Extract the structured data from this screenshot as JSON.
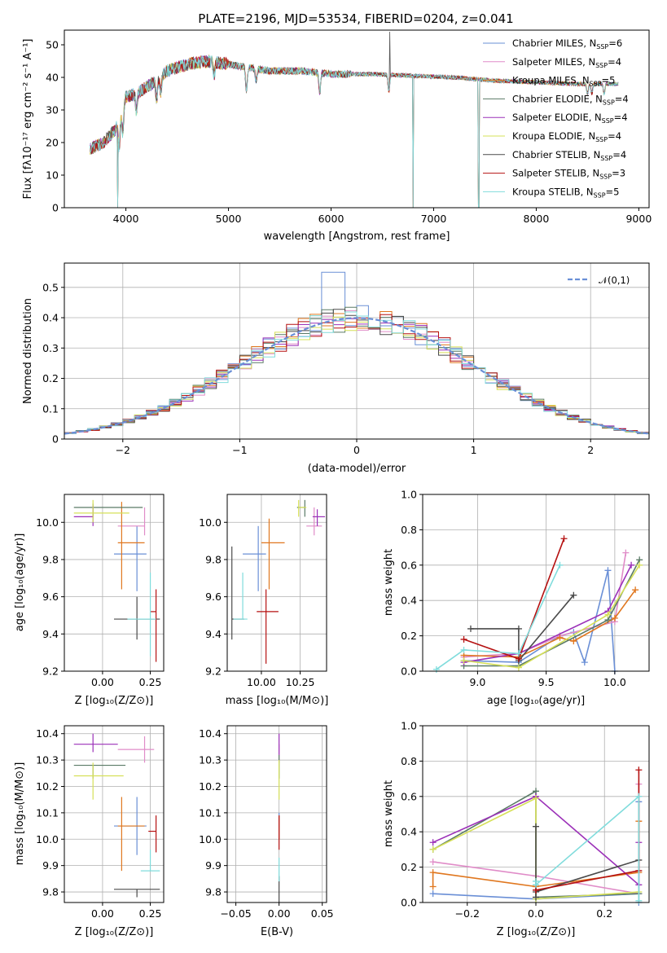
{
  "colors": [
    "#6a8fd6",
    "#e08cc8",
    "#e0771f",
    "#5a7a66",
    "#9b30b8",
    "#d6e058",
    "#4a4a4a",
    "#b51111",
    "#80dcdc"
  ],
  "legend_labels": [
    "Chabrier MILES, N",
    "Salpeter MILES, N",
    "Kroupa MILES, N",
    "Chabrier ELODIE, N",
    "Salpeter ELODIE, N",
    "Kroupa ELODIE, N",
    "Chabrier STELIB, N",
    "Salpeter STELIB, N",
    "Kroupa STELIB, N"
  ],
  "legend_sub": "SSP",
  "legend_counts": [
    "=6",
    "=4",
    "=5",
    "=4",
    "=4",
    "=4",
    "=4",
    "=3",
    "=5"
  ],
  "chart_data": [
    {
      "id": "spectrum",
      "type": "line",
      "title": "PLATE=2196, MJD=53534, FIBERID=0204, z=0.041",
      "xlabel": "wavelength [Angstrom, rest frame]",
      "ylabel": "Flux [fλ10⁻¹⁷ erg cm⁻² s⁻¹ A⁻¹]",
      "xlim": [
        3400,
        9100
      ],
      "ylim": [
        0,
        54.5
      ],
      "xticks": [
        4000,
        5000,
        6000,
        7000,
        8000,
        9000
      ],
      "yticks": [
        0,
        10,
        20,
        30,
        40,
        50
      ],
      "continuum": [
        [
          3650,
          18
        ],
        [
          3780,
          20
        ],
        [
          3900,
          24
        ],
        [
          4000,
          34
        ],
        [
          4100,
          35
        ],
        [
          4250,
          38
        ],
        [
          4400,
          42
        ],
        [
          4600,
          44
        ],
        [
          4800,
          45
        ],
        [
          5000,
          44
        ],
        [
          5200,
          43
        ],
        [
          5400,
          42
        ],
        [
          5700,
          42
        ],
        [
          6000,
          41
        ],
        [
          6400,
          41
        ],
        [
          6800,
          40.5
        ],
        [
          7200,
          40
        ],
        [
          7600,
          39
        ],
        [
          8000,
          38.5
        ],
        [
          8400,
          38
        ],
        [
          8800,
          38
        ]
      ],
      "dips": [
        [
          3934,
          9
        ],
        [
          3969,
          8
        ],
        [
          4102,
          5
        ],
        [
          4300,
          6
        ],
        [
          4340,
          5
        ],
        [
          4861,
          4
        ],
        [
          5175,
          7
        ],
        [
          5270,
          4
        ],
        [
          5890,
          6
        ],
        [
          6563,
          5
        ],
        [
          8500,
          3
        ],
        [
          8542,
          3
        ],
        [
          8662,
          3
        ]
      ],
      "drops": [
        [
          3920,
          0,
          5
        ],
        [
          6800,
          0,
          5
        ],
        [
          7440,
          0,
          7
        ]
      ],
      "spike": [
        6570,
        54
      ]
    },
    {
      "id": "residuals",
      "type": "histogram",
      "xlabel": "(data-model)/error",
      "ylabel": "Normed distribution",
      "xlim": [
        -2.5,
        2.5
      ],
      "ylim": [
        0,
        0.58
      ],
      "xticks": [
        -2,
        -1,
        0,
        1,
        2
      ],
      "yticks": [
        0.0,
        0.1,
        0.2,
        0.3,
        0.4,
        0.5
      ],
      "bin_width": 0.1,
      "legend": "𝒩(0,1)",
      "peaks": [
        0.55,
        0.48,
        0.47,
        0.42,
        0.46,
        0.45,
        0.44,
        0.45,
        0.44
      ]
    },
    {
      "id": "age_vs_Z",
      "type": "errorbar",
      "xlabel": "Z [log₁₀(Z/Z⊙)]",
      "ylabel": "age  [log₁₀(age/yr)]",
      "xlim": [
        -0.2,
        0.32
      ],
      "ylim": [
        9.2,
        10.15
      ],
      "xticks": [
        0.0,
        0.25
      ],
      "xticklabels": [
        "0.00",
        "0.25"
      ],
      "yticks": [
        9.2,
        9.4,
        9.6,
        9.8,
        10.0
      ],
      "yticklabels": [
        "9.2",
        "9.4",
        "9.6",
        "9.8",
        "10.0"
      ],
      "points": [
        {
          "x": 0.18,
          "y": 9.83,
          "xerr": [
            0.12,
            0.05
          ],
          "yerr": [
            0.2,
            0.15
          ]
        },
        {
          "x": 0.22,
          "y": 9.98,
          "xerr": [
            0.14,
            0.0
          ],
          "yerr": [
            0.05,
            0.1
          ]
        },
        {
          "x": 0.1,
          "y": 9.89,
          "xerr": [
            0.02,
            0.12
          ],
          "yerr": [
            0.25,
            0.22
          ]
        },
        {
          "x": -0.05,
          "y": 10.08,
          "xerr": [
            0.1,
            0.26
          ],
          "yerr": [
            0.05,
            0.02
          ]
        },
        {
          "x": -0.05,
          "y": 10.03,
          "xerr": [
            0.1,
            0.0
          ],
          "yerr": [
            0.05,
            0.06
          ]
        },
        {
          "x": -0.05,
          "y": 10.05,
          "xerr": [
            0.1,
            0.19
          ],
          "yerr": [
            0.05,
            0.07
          ]
        },
        {
          "x": 0.18,
          "y": 9.48,
          "xerr": [
            0.12,
            0.12
          ],
          "yerr": [
            0.11,
            0.12
          ]
        },
        {
          "x": 0.28,
          "y": 9.52,
          "xerr": [
            0.03,
            0.0
          ],
          "yerr": [
            0.27,
            0.12
          ]
        },
        {
          "x": 0.25,
          "y": 9.48,
          "xerr": [
            0.12,
            0.03
          ],
          "yerr": [
            0.2,
            0.25
          ]
        }
      ]
    },
    {
      "id": "age_vs_mass",
      "type": "errorbar",
      "xlabel": "mass [log₁₀(M/M⊙)]",
      "ylabel": "",
      "xlim": [
        9.78,
        10.42
      ],
      "ylim": [
        9.2,
        10.15
      ],
      "xticks": [
        10.0,
        10.25
      ],
      "xticklabels": [
        "10.00",
        "10.25"
      ],
      "yticks": [
        9.2,
        9.4,
        9.6,
        9.8,
        10.0
      ],
      "yticklabels": [
        "9.2",
        "9.4",
        "9.6",
        "9.8",
        "10.0"
      ],
      "points": [
        {
          "x": 9.98,
          "y": 9.83,
          "xerr": [
            0.1,
            0.05
          ],
          "yerr": [
            0.2,
            0.15
          ]
        },
        {
          "x": 10.34,
          "y": 9.98,
          "xerr": [
            0.05,
            0.05
          ],
          "yerr": [
            0.05,
            0.1
          ]
        },
        {
          "x": 10.05,
          "y": 9.89,
          "xerr": [
            0.05,
            0.1
          ],
          "yerr": [
            0.25,
            0.13
          ]
        },
        {
          "x": 10.28,
          "y": 10.08,
          "xerr": [
            0.05,
            0.0
          ],
          "yerr": [
            0.05,
            0.04
          ]
        },
        {
          "x": 10.36,
          "y": 10.03,
          "xerr": [
            0.03,
            0.05
          ],
          "yerr": [
            0.05,
            0.04
          ]
        },
        {
          "x": 10.24,
          "y": 10.08,
          "xerr": [
            0.0,
            0.05
          ],
          "yerr": [
            0.05,
            0.04
          ]
        },
        {
          "x": 9.81,
          "y": 9.48,
          "xerr": [
            0.0,
            0.08
          ],
          "yerr": [
            0.11,
            0.39
          ]
        },
        {
          "x": 10.03,
          "y": 9.52,
          "xerr": [
            0.06,
            0.08
          ],
          "yerr": [
            0.28,
            0.12
          ]
        },
        {
          "x": 9.88,
          "y": 9.48,
          "xerr": [
            0.06,
            0.03
          ],
          "yerr": [
            0.0,
            0.25
          ]
        }
      ]
    },
    {
      "id": "weight_vs_age",
      "type": "line",
      "xlabel": "age  [log₁₀(age/yr)]",
      "ylabel": "mass weight",
      "xlim": [
        8.6,
        10.25
      ],
      "ylim": [
        0,
        1.0
      ],
      "xticks": [
        9.0,
        9.5,
        10.0
      ],
      "xticklabels": [
        "9.0",
        "9.5",
        "10.0"
      ],
      "yticks": [
        0.0,
        0.2,
        0.4,
        0.6,
        0.8,
        1.0
      ],
      "yticklabels": [
        "0.0",
        "0.2",
        "0.4",
        "0.6",
        "0.8",
        "1.0"
      ],
      "series": [
        {
          "x": [
            8.9,
            9.3,
            9.6,
            9.7,
            9.78,
            9.95,
            10.0
          ],
          "y": [
            0.06,
            0.05,
            0.2,
            0.22,
            0.05,
            0.57,
            0.0
          ]
        },
        {
          "x": [
            8.9,
            9.3,
            9.6,
            10.0,
            10.08
          ],
          "y": [
            0.08,
            0.1,
            0.2,
            0.28,
            0.67
          ]
        },
        {
          "x": [
            8.9,
            9.3,
            9.6,
            9.7,
            10.0,
            10.15
          ],
          "y": [
            0.09,
            0.08,
            0.19,
            0.17,
            0.3,
            0.46
          ]
        },
        {
          "x": [
            8.9,
            9.3,
            9.95,
            10.18
          ],
          "y": [
            0.03,
            0.03,
            0.29,
            0.63
          ]
        },
        {
          "x": [
            8.9,
            9.3,
            9.95,
            10.12
          ],
          "y": [
            0.05,
            0.1,
            0.34,
            0.6
          ]
        },
        {
          "x": [
            8.9,
            9.3,
            9.95,
            10.18
          ],
          "y": [
            0.06,
            0.02,
            0.32,
            0.6
          ]
        },
        {
          "x": [
            8.95,
            9.3,
            9.3,
            9.7
          ],
          "y": [
            0.24,
            0.24,
            0.06,
            0.43
          ]
        },
        {
          "x": [
            8.9,
            9.3,
            9.63
          ],
          "y": [
            0.18,
            0.07,
            0.75
          ]
        },
        {
          "x": [
            8.7,
            8.9,
            9.3,
            9.6
          ],
          "y": [
            0.01,
            0.12,
            0.1,
            0.6
          ]
        }
      ]
    },
    {
      "id": "mass_vs_Z",
      "type": "errorbar",
      "xlabel": "Z [log₁₀(Z/Z⊙)]",
      "ylabel": "mass [log₁₀(M/M⊙)]",
      "xlim": [
        -0.2,
        0.32
      ],
      "ylim": [
        9.76,
        10.43
      ],
      "xticks": [
        0.0,
        0.25
      ],
      "xticklabels": [
        "0.00",
        "0.25"
      ],
      "yticks": [
        9.8,
        9.9,
        10.0,
        10.1,
        10.2,
        10.3,
        10.4
      ],
      "yticklabels": [
        "9.8",
        "9.9",
        "10.0",
        "10.1",
        "10.2",
        "10.3",
        "10.4"
      ],
      "points": [
        {
          "x": 0.18,
          "y": 10.05,
          "xerr": [
            0.12,
            0.05
          ],
          "yerr": [
            0.11,
            0.11
          ]
        },
        {
          "x": 0.22,
          "y": 10.34,
          "xerr": [
            0.14,
            0.05
          ],
          "yerr": [
            0.05,
            0.05
          ]
        },
        {
          "x": 0.1,
          "y": 10.05,
          "xerr": [
            0.02,
            0.12
          ],
          "yerr": [
            0.17,
            0.11
          ]
        },
        {
          "x": -0.05,
          "y": 10.28,
          "xerr": [
            0.1,
            0.17
          ],
          "yerr": [
            0.05,
            0.0
          ]
        },
        {
          "x": -0.05,
          "y": 10.36,
          "xerr": [
            0.1,
            0.13
          ],
          "yerr": [
            0.03,
            0.04
          ]
        },
        {
          "x": -0.05,
          "y": 10.24,
          "xerr": [
            0.1,
            0.16
          ],
          "yerr": [
            0.09,
            0.05
          ]
        },
        {
          "x": 0.18,
          "y": 9.81,
          "xerr": [
            0.12,
            0.12
          ],
          "yerr": [
            0.03,
            0.0
          ]
        },
        {
          "x": 0.28,
          "y": 10.03,
          "xerr": [
            0.04,
            0.0
          ],
          "yerr": [
            0.08,
            0.06
          ]
        },
        {
          "x": 0.25,
          "y": 9.88,
          "xerr": [
            0.05,
            0.05
          ],
          "yerr": [
            0.0,
            0.08
          ]
        }
      ]
    },
    {
      "id": "mass_vs_ebv",
      "type": "errorbar",
      "xlabel": "E(B-V)",
      "ylabel": "",
      "xlim": [
        -0.06,
        0.055
      ],
      "ylim": [
        9.76,
        10.43
      ],
      "xticks": [
        -0.05,
        0.0,
        0.05
      ],
      "xticklabels": [
        "−0.05",
        "0.00",
        "0.05"
      ],
      "yticks": [
        9.8,
        9.9,
        10.0,
        10.1,
        10.2,
        10.3,
        10.4
      ],
      "yticklabels": [
        "9.8",
        "9.9",
        "10.0",
        "10.1",
        "10.2",
        "10.3",
        "10.4"
      ],
      "points": [
        {
          "x": 0.0,
          "y": 10.05,
          "xerr": [
            0,
            0
          ],
          "yerr": [
            0.05,
            0.05
          ]
        },
        {
          "x": 0.0,
          "y": 10.34,
          "xerr": [
            0,
            0
          ],
          "yerr": [
            0.05,
            0.02
          ]
        },
        {
          "x": 0.0,
          "y": 10.05,
          "xerr": [
            0,
            0
          ],
          "yerr": [
            0.05,
            0.04
          ]
        },
        {
          "x": 0.0,
          "y": 10.28,
          "xerr": [
            0,
            0
          ],
          "yerr": [
            0.05,
            0.04
          ]
        },
        {
          "x": 0.0,
          "y": 10.36,
          "xerr": [
            0,
            0
          ],
          "yerr": [
            0.04,
            0.04
          ]
        },
        {
          "x": 0.0,
          "y": 10.24,
          "xerr": [
            0,
            0
          ],
          "yerr": [
            0.09,
            0.06
          ]
        },
        {
          "x": 0.0,
          "y": 9.81,
          "xerr": [
            0,
            0
          ],
          "yerr": [
            0.05,
            0.05
          ]
        },
        {
          "x": 0.0,
          "y": 10.03,
          "xerr": [
            0,
            0
          ],
          "yerr": [
            0.07,
            0.06
          ]
        },
        {
          "x": 0.0,
          "y": 9.88,
          "xerr": [
            0,
            0
          ],
          "yerr": [
            0.04,
            0.05
          ]
        }
      ]
    },
    {
      "id": "weight_vs_Z",
      "type": "line",
      "xlabel": "Z [log₁₀(Z/Z⊙)]",
      "ylabel": "mass weight",
      "xlim": [
        -0.33,
        0.33
      ],
      "ylim": [
        0,
        1.0
      ],
      "xticks": [
        -0.2,
        0.0,
        0.2
      ],
      "xticklabels": [
        "−0.2",
        "0.0",
        "0.2"
      ],
      "yticks": [
        0.0,
        0.2,
        0.4,
        0.6,
        0.8,
        1.0
      ],
      "yticklabels": [
        "0.0",
        "0.2",
        "0.4",
        "0.6",
        "0.8",
        "1.0"
      ],
      "series": [
        {
          "x": [
            -0.3,
            0.0,
            0.3,
            0.3,
            0.3
          ],
          "y": [
            0.05,
            0.02,
            0.05,
            0.57,
            0.0
          ]
        },
        {
          "x": [
            -0.3,
            0.0,
            0.3,
            0.3
          ],
          "y": [
            0.23,
            0.15,
            0.05,
            0.67
          ]
        },
        {
          "x": [
            -0.3,
            -0.3,
            0.0,
            0.3,
            0.3
          ],
          "y": [
            0.09,
            0.17,
            0.09,
            0.17,
            0.46
          ]
        },
        {
          "x": [
            -0.3,
            0.0,
            0.0,
            0.3
          ],
          "y": [
            0.3,
            0.63,
            0.03,
            0.05
          ]
        },
        {
          "x": [
            -0.3,
            0.0,
            0.3,
            0.3
          ],
          "y": [
            0.34,
            0.6,
            0.1,
            0.34
          ]
        },
        {
          "x": [
            -0.3,
            0.0,
            0.0,
            0.3
          ],
          "y": [
            0.3,
            0.59,
            0.02,
            0.06
          ]
        },
        {
          "x": [
            0.0,
            0.0,
            0.0,
            0.3
          ],
          "y": [
            0.43,
            0.03,
            0.06,
            0.24
          ]
        },
        {
          "x": [
            0.0,
            0.0,
            0.3,
            0.3
          ],
          "y": [
            0.07,
            0.07,
            0.18,
            0.75
          ]
        },
        {
          "x": [
            0.0,
            0.0,
            0.3,
            0.3
          ],
          "y": [
            0.12,
            0.1,
            0.6,
            0.01
          ]
        }
      ]
    }
  ]
}
